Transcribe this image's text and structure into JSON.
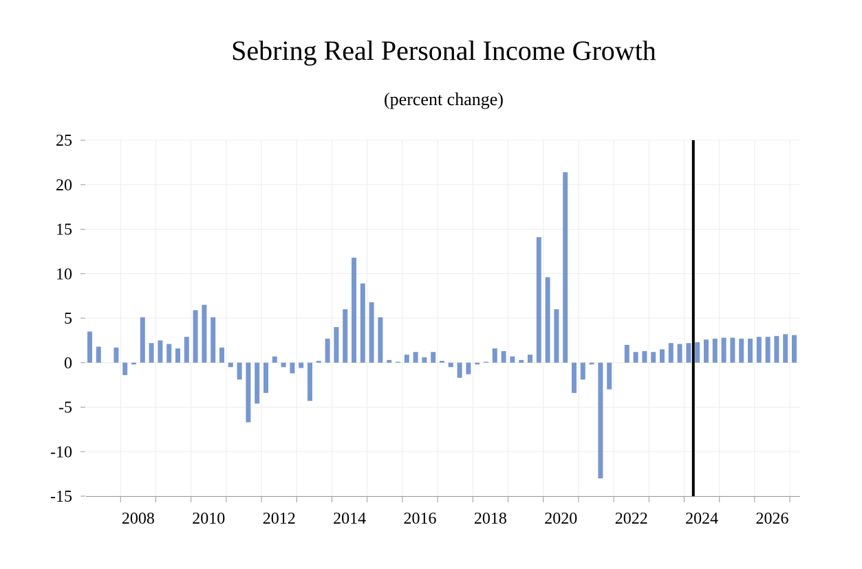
{
  "chart_data": {
    "type": "bar",
    "title": "Sebring Real Personal Income Growth",
    "subtitle": "(percent change)",
    "xlabel": "",
    "ylabel": "",
    "ylim": [
      -15,
      25
    ],
    "yticks": [
      25,
      20,
      15,
      10,
      5,
      0,
      -5,
      -10,
      -15
    ],
    "ytick_labels": [
      "25",
      "20",
      "15",
      "10",
      "5",
      "0",
      "-5",
      "-10",
      "-15"
    ],
    "xtick_labels": [
      "2008",
      "2010",
      "2012",
      "2014",
      "2016",
      "2018",
      "2020",
      "2022",
      "2024",
      "2026"
    ],
    "xtick_years": [
      2008,
      2010,
      2012,
      2014,
      2016,
      2018,
      2020,
      2022,
      2024,
      2026
    ],
    "start_year": 2007,
    "start_quarter": 1,
    "forecast_start": "2024 Q2",
    "forecast_marker_index": 69,
    "bar_color": "#7797cf",
    "grid": true,
    "legend": "none",
    "series": [
      {
        "name": "Real Personal Income Growth",
        "values": [
          3.5,
          1.8,
          0.0,
          1.7,
          -1.4,
          -0.2,
          5.1,
          2.2,
          2.5,
          2.1,
          1.6,
          2.9,
          5.9,
          6.5,
          5.1,
          1.7,
          -0.5,
          -1.9,
          -6.7,
          -4.6,
          -3.4,
          0.7,
          -0.5,
          -1.2,
          -0.6,
          -4.3,
          0.2,
          2.7,
          4.0,
          6.0,
          11.8,
          8.9,
          6.8,
          5.1,
          0.3,
          0.1,
          0.9,
          1.2,
          0.6,
          1.2,
          0.2,
          -0.5,
          -1.7,
          -1.3,
          -0.2,
          0.1,
          1.6,
          1.3,
          0.7,
          0.3,
          0.9,
          14.1,
          9.6,
          6.0,
          21.4,
          -3.4,
          -1.9,
          -0.2,
          -13.0,
          -3.0,
          0.0,
          2.0,
          1.2,
          1.3,
          1.2,
          1.5,
          2.2,
          2.1,
          2.2,
          2.3,
          2.6,
          2.7,
          2.8,
          2.8,
          2.7,
          2.7,
          2.9,
          2.9,
          3.0,
          3.2,
          3.1
        ]
      }
    ]
  }
}
